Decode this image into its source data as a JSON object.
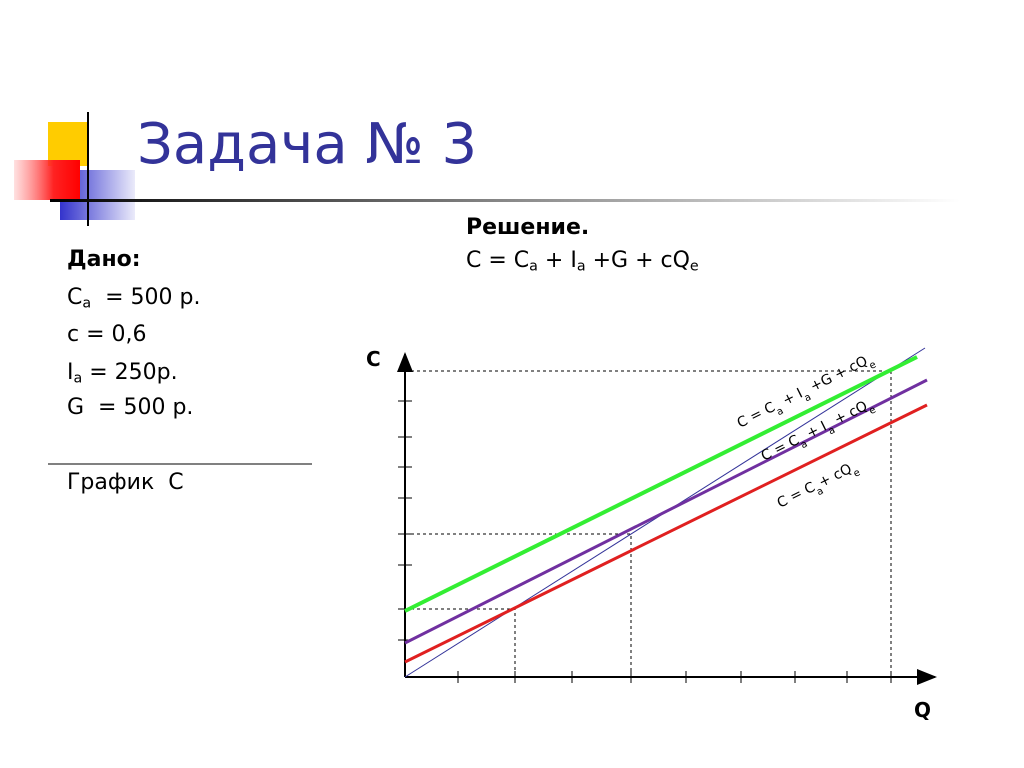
{
  "title": "Задача № 3",
  "given": {
    "heading": "Дано:",
    "lines": [
      [
        "C",
        "a",
        "  = 500 р."
      ],
      [
        "с = 0,6"
      ],
      [
        "I",
        "a",
        " = 250р."
      ],
      [
        "G  = 500 р."
      ]
    ]
  },
  "graph_caption": "График  С",
  "solution": {
    "heading": "Решение.",
    "formula": [
      "C = C",
      "a",
      " + I",
      "a",
      " +G + cQ",
      "e"
    ]
  },
  "graph": {
    "y_axis_label": "C",
    "x_axis_label": "Q",
    "line_labels": [
      [
        "C = C",
        "a",
        " + I",
        "a",
        " +G + cQ",
        "e"
      ],
      [
        "C = C",
        "a",
        " + I",
        "a",
        " + cQ",
        "e"
      ],
      [
        "C = C",
        "a",
        "+  cQ",
        "e"
      ]
    ]
  }
}
